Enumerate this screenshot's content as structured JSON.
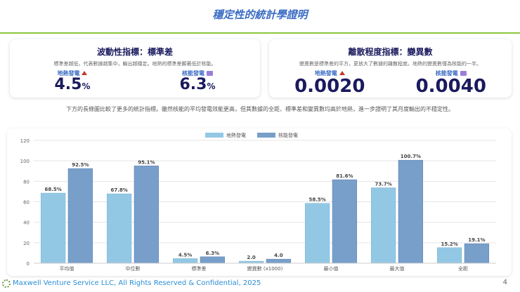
{
  "title": "穩定性的統計學證明",
  "cards": [
    {
      "title": "波動性指標：標準差",
      "desc": "標準差越低，代表數據越集中，輸出越穩定。地熱的標準差顯著低於核能。",
      "metrics": [
        {
          "label": "地熱發電",
          "icon": "volcano-icon",
          "value": "4.5",
          "unit": "%"
        },
        {
          "label": "核能發電",
          "icon": "atom-icon",
          "value": "6.3",
          "unit": "%"
        }
      ]
    },
    {
      "title": "離散程度指標：變異數",
      "desc": "變異數是標準差的平方，更放大了數據的離散程度。地熱的變異數僅為核能的一半。",
      "metrics": [
        {
          "label": "地熱發電",
          "icon": "volcano-icon",
          "value": "0.0020",
          "unit": ""
        },
        {
          "label": "核能發電",
          "icon": "atom-icon",
          "value": "0.0040",
          "unit": ""
        }
      ]
    }
  ],
  "description": "下方的長條圖比較了更多的統計指標。雖然核能的平均發電效能更高，但其數據的全距、標準差和變異數均高於地熱，進一步證明了其月度輸出的不穩定性。",
  "chart_data": {
    "type": "bar",
    "categories": [
      "平均值",
      "中位數",
      "標準差",
      "變異數 (x1000)",
      "最小值",
      "最大值",
      "全距"
    ],
    "series": [
      {
        "name": "地熱發電",
        "color": "#93c8e4",
        "values": [
          68.5,
          67.8,
          4.5,
          2.0,
          58.5,
          73.7,
          15.2
        ],
        "labels": [
          "68.5%",
          "67.8%",
          "4.5%",
          "2.0",
          "58.5%",
          "73.7%",
          "15.2%"
        ]
      },
      {
        "name": "核能發電",
        "color": "#789fca",
        "values": [
          92.5,
          95.1,
          6.3,
          4.0,
          81.6,
          100.7,
          19.1
        ],
        "labels": [
          "92.5%",
          "95.1%",
          "6.3%",
          "4.0",
          "81.6%",
          "100.7%",
          "19.1%"
        ]
      }
    ],
    "ylim": [
      0,
      120
    ],
    "yticks": [
      0,
      20,
      40,
      60,
      80,
      100,
      120
    ],
    "legend": "top",
    "grid": true
  },
  "footer": {
    "text": "Maxwell Venture Service LLC, All Rights Reserved & Confidential, 2025",
    "page": "4"
  }
}
